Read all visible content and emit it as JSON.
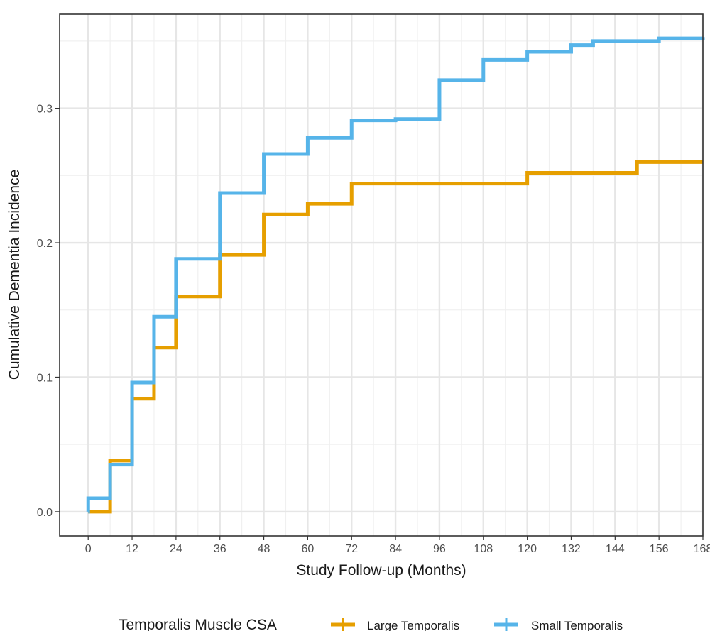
{
  "chart_data": {
    "type": "line",
    "step": true,
    "title": "",
    "xlabel": "Study Follow-up (Months)",
    "ylabel": "Cumulative Dementia Incidence",
    "xlim": [
      -7.8,
      168
    ],
    "ylim": [
      -0.018,
      0.37
    ],
    "x_ticks": [
      0,
      12,
      24,
      36,
      48,
      60,
      72,
      84,
      96,
      108,
      120,
      132,
      144,
      156,
      168
    ],
    "x_tick_labels": [
      "0",
      "12",
      "24",
      "36",
      "48",
      "60",
      "72",
      "84",
      "96",
      "108",
      "120",
      "132",
      "144",
      "156",
      "168"
    ],
    "y_ticks": [
      0.0,
      0.1,
      0.2,
      0.3
    ],
    "y_tick_labels": [
      "0.0",
      "0.1",
      "0.2",
      "0.3"
    ],
    "grid": true,
    "legend": {
      "title": "Temporalis Muscle CSA",
      "placement": "bottom",
      "entries": [
        "Large Temporalis",
        "Small Temporalis"
      ]
    },
    "series": [
      {
        "name": "Large Temporalis",
        "color": "#E69F00",
        "x": [
          0,
          6,
          12,
          18,
          24,
          36,
          48,
          60,
          72,
          120,
          150,
          168
        ],
        "y": [
          0.0,
          0.038,
          0.084,
          0.122,
          0.16,
          0.191,
          0.221,
          0.229,
          0.244,
          0.252,
          0.26,
          0.26
        ]
      },
      {
        "name": "Small Temporalis",
        "color": "#56B4E9",
        "x": [
          0,
          0.01,
          6,
          12,
          18,
          24,
          36,
          48,
          60,
          72,
          84,
          96,
          108,
          120,
          132,
          138,
          156,
          168
        ],
        "y": [
          0.0,
          0.01,
          0.035,
          0.096,
          0.145,
          0.188,
          0.237,
          0.266,
          0.278,
          0.291,
          0.292,
          0.321,
          0.336,
          0.342,
          0.347,
          0.35,
          0.352,
          0.353
        ]
      }
    ]
  }
}
